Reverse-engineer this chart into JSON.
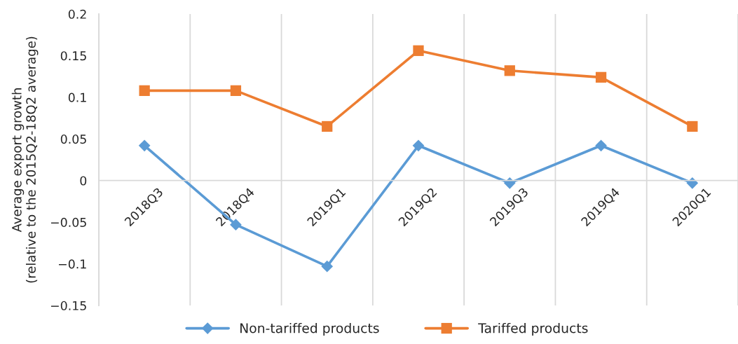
{
  "chart_data": {
    "type": "line",
    "ylabel": "Average export growth\n(relative to the 2015Q2-18Q2 average)",
    "categories": [
      "2018Q3",
      "2018Q4",
      "2019Q1",
      "2019Q2",
      "2019Q3",
      "2019Q4",
      "2020Q1"
    ],
    "series": [
      {
        "name": "Non-tariffed products",
        "color": "#5b9bd5",
        "marker": "diamond",
        "values": [
          0.042,
          -0.053,
          -0.103,
          0.042,
          -0.003,
          0.042,
          -0.003
        ]
      },
      {
        "name": "Tariffed products",
        "color": "#ed7d31",
        "marker": "square",
        "values": [
          0.108,
          0.108,
          0.065,
          0.156,
          0.132,
          0.124,
          0.065
        ]
      }
    ],
    "ylim": [
      -0.15,
      0.2
    ],
    "yticks": [
      {
        "value": -0.15,
        "label": "−0.15"
      },
      {
        "value": -0.1,
        "label": "−0.1"
      },
      {
        "value": -0.05,
        "label": "−0.05"
      },
      0,
      0.05,
      0.1,
      0.15,
      0.2
    ],
    "grid": "x",
    "legend": "bottom",
    "line_style": "solid"
  }
}
